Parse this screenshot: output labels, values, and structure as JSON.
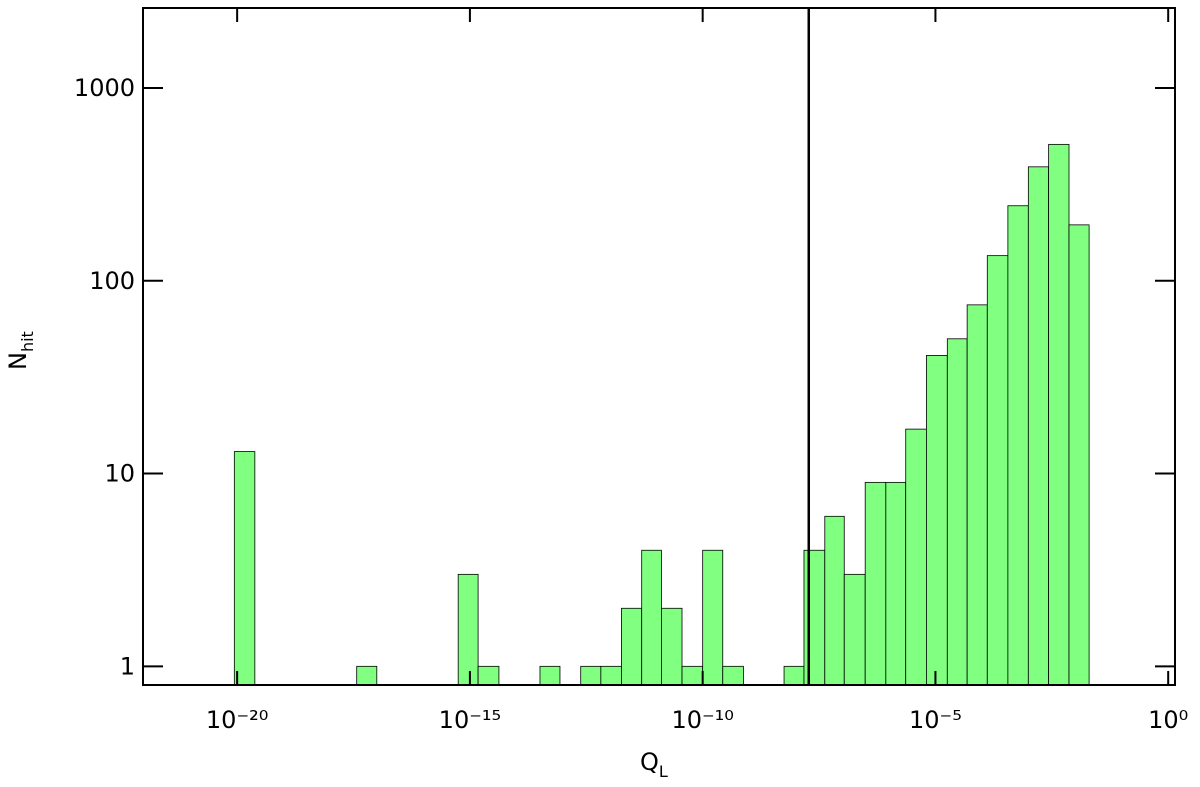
{
  "chart_data": {
    "type": "histogram",
    "xlabel": {
      "main": "Q",
      "sub": "L"
    },
    "ylabel": {
      "main": "N",
      "sub": "hit"
    },
    "bins": [
      8.7e-21,
      2.4e-20,
      6.5e-20,
      1.8e-19,
      4.9e-19,
      1.3e-18,
      3.7e-18,
      1e-17,
      2.7e-17,
      7.5e-17,
      2.1e-16,
      5.6e-16,
      1.5e-15,
      4.2e-15,
      1.2e-14,
      3.2e-14,
      8.6e-14,
      2.4e-13,
      6.5e-13,
      1.8e-12,
      4.9e-12,
      1.3e-11,
      3.6e-11,
      1e-10,
      2.7e-10,
      7.5e-10,
      2e-09,
      5.6e-09,
      1.5e-08,
      4.2e-08,
      1.1e-07,
      3.1e-07,
      8.6e-07,
      2.3e-06,
      6.4e-06,
      1.8e-05,
      4.8e-05,
      0.00013,
      0.00036,
      0.00099,
      0.0027,
      0.0074,
      0.02
    ],
    "values": [
      13,
      0,
      0,
      0,
      0,
      0,
      1,
      0,
      0,
      0,
      0,
      3,
      1,
      0,
      0,
      1,
      0,
      1,
      1,
      2,
      4,
      2,
      1,
      4,
      1,
      0,
      0,
      1,
      4,
      6,
      3,
      9,
      9,
      17,
      41,
      50,
      75,
      135,
      245,
      390,
      510,
      195
    ],
    "color": "#80ff80",
    "vline": 1.9e-08,
    "xscale": "log",
    "yscale": "log",
    "xlim": [
      9.5e-23,
      1.4
    ],
    "ylim": [
      0.8,
      2600
    ],
    "xticks": [
      {
        "value": 1e-20,
        "label": "10⁻²⁰"
      },
      {
        "value": 1e-15,
        "label": "10⁻¹⁵"
      },
      {
        "value": 1e-10,
        "label": "10⁻¹⁰"
      },
      {
        "value": 1e-05,
        "label": "10⁻⁵"
      },
      {
        "value": 1,
        "label": "10⁰"
      }
    ],
    "yticks": [
      1,
      10,
      100,
      1000
    ]
  }
}
